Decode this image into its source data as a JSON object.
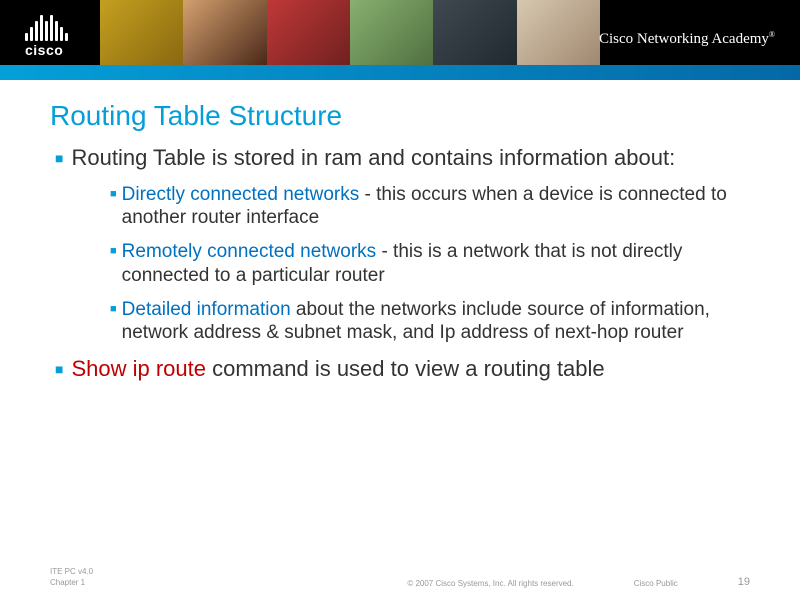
{
  "header": {
    "logo_text": "cisco",
    "academy_text": "Cisco Networking Academy",
    "academy_mark": "®",
    "stripe_color": "#049fd9",
    "bar_color": "#000000",
    "logo_bars": [
      8,
      14,
      20,
      26,
      20,
      26,
      20,
      14,
      8
    ]
  },
  "title": "Routing Table Structure",
  "bullets": [
    {
      "text": "Routing Table is stored in ram and contains information about:",
      "level": 1
    },
    {
      "em": "Directly connected networks",
      "em_color": "#0070c0",
      "rest": " - this occurs when a device is connected to another router interface",
      "level": 2
    },
    {
      "em": "Remotely connected networks",
      "em_color": "#0070c0",
      "rest": " - this is a network that is not directly connected to a particular router",
      "level": 2
    },
    {
      "em": "Detailed information",
      "em_color": "#0070c0",
      "rest": " about the networks include source of information, network address & subnet mask, and Ip address of next-hop router",
      "level": 2
    },
    {
      "em": "Show ip route",
      "em_color": "#c00000",
      "rest": " command is used to view a routing table",
      "level": 1
    }
  ],
  "footer": {
    "left_line1": "ITE PC v4.0",
    "left_line2": "Chapter 1",
    "center": "© 2007 Cisco Systems, Inc. All rights reserved.",
    "right_label": "Cisco Public",
    "page": "19"
  },
  "colors": {
    "title": "#049fd9",
    "bullet_marker": "#049fd9",
    "body_text": "#333333",
    "footer_text": "#999999",
    "background": "#ffffff"
  },
  "fonts": {
    "title_size": 28,
    "bullet1_size": 22,
    "bullet2_size": 19,
    "footer_size": 8
  }
}
